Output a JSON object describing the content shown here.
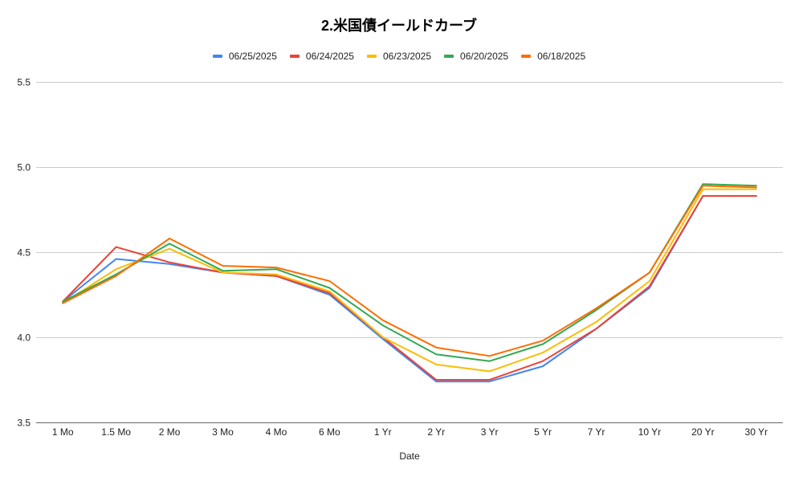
{
  "chart_data": {
    "type": "line",
    "title": "2.米国債イールドカーブ",
    "xlabel": "Date",
    "ylabel": "",
    "categories": [
      "1 Mo",
      "1.5 Mo",
      "2 Mo",
      "3 Mo",
      "4 Mo",
      "6 Mo",
      "1 Yr",
      "2 Yr",
      "3 Yr",
      "5 Yr",
      "7 Yr",
      "10 Yr",
      "20 Yr",
      "30 Yr"
    ],
    "ylim": [
      3.5,
      5.5
    ],
    "yticks": [
      "3.5",
      "4.0",
      "4.5",
      "5.0",
      "5.5"
    ],
    "grid": true,
    "legend": "top",
    "series": [
      {
        "name": "06/25/2025",
        "color": "#4285F4",
        "values": [
          4.21,
          4.46,
          4.43,
          4.38,
          4.36,
          4.25,
          3.99,
          3.74,
          3.74,
          3.83,
          4.05,
          4.29,
          4.83,
          4.83
        ]
      },
      {
        "name": "06/24/2025",
        "color": "#EA4335",
        "values": [
          4.21,
          4.53,
          4.44,
          4.38,
          4.36,
          4.26,
          4.0,
          3.75,
          3.75,
          3.86,
          4.05,
          4.3,
          4.83,
          4.83
        ]
      },
      {
        "name": "06/23/2025",
        "color": "#FBBC04",
        "values": [
          4.2,
          4.4,
          4.52,
          4.38,
          4.37,
          4.27,
          4.0,
          3.84,
          3.8,
          3.91,
          4.09,
          4.33,
          4.87,
          4.87
        ]
      },
      {
        "name": "06/20/2025",
        "color": "#34A853",
        "values": [
          4.21,
          4.37,
          4.55,
          4.39,
          4.4,
          4.29,
          4.07,
          3.9,
          3.86,
          3.96,
          4.16,
          4.38,
          4.9,
          4.89
        ]
      },
      {
        "name": "06/18/2025",
        "color": "#FF6D01",
        "values": [
          4.2,
          4.36,
          4.58,
          4.42,
          4.41,
          4.33,
          4.1,
          3.94,
          3.89,
          3.98,
          4.17,
          4.38,
          4.89,
          4.88
        ]
      }
    ]
  }
}
